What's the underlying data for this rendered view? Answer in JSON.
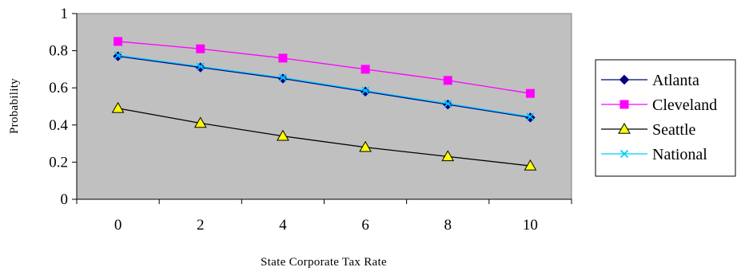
{
  "chart_data": {
    "type": "line",
    "title": "",
    "xlabel": "State Corporate Tax Rate",
    "ylabel": "Probability",
    "x": [
      0,
      2,
      4,
      6,
      8,
      10
    ],
    "x_tick_labels": [
      "0",
      "2",
      "4",
      "6",
      "8",
      "10"
    ],
    "ylim": [
      0,
      1
    ],
    "y_tick_labels": [
      "0",
      "0.2",
      "0.4",
      "0.6",
      "0.8",
      "1"
    ],
    "grid": false,
    "plot_background": "#c0c0c0",
    "legend_position": "right",
    "series": [
      {
        "name": "Atlanta",
        "values": [
          0.77,
          0.71,
          0.65,
          0.58,
          0.51,
          0.44
        ],
        "color": "#000080",
        "marker": "diamond"
      },
      {
        "name": "Cleveland",
        "values": [
          0.85,
          0.81,
          0.76,
          0.7,
          0.64,
          0.57
        ],
        "color": "#ff00ff",
        "marker": "square"
      },
      {
        "name": "Seattle",
        "values": [
          0.49,
          0.41,
          0.34,
          0.28,
          0.23,
          0.18
        ],
        "color": "#000000",
        "marker": "triangle",
        "marker_fill": "#ffff00"
      },
      {
        "name": "National",
        "values": [
          0.775,
          0.715,
          0.655,
          0.585,
          0.515,
          0.445
        ],
        "color": "#00ccff",
        "marker": "x"
      }
    ]
  }
}
